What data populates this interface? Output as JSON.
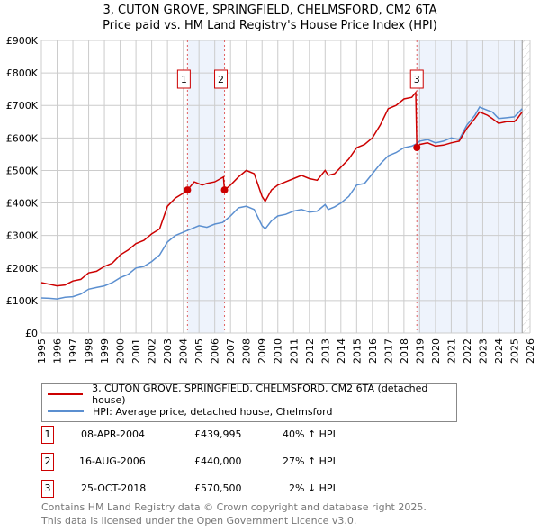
{
  "title": "3, CUTON GROVE, SPRINGFIELD, CHELMSFORD, CM2 6TA",
  "subtitle": "Price paid vs. HM Land Registry's House Price Index (HPI)",
  "chart_data": {
    "type": "line",
    "xlim": [
      1995,
      2026
    ],
    "ylim": [
      0,
      900000
    ],
    "yticks": [
      0,
      100000,
      200000,
      300000,
      400000,
      500000,
      600000,
      700000,
      800000,
      900000
    ],
    "ytick_labels": [
      "£0",
      "£100K",
      "£200K",
      "£300K",
      "£400K",
      "£500K",
      "£600K",
      "£700K",
      "£800K",
      "£900K"
    ],
    "xticks": [
      1995,
      1996,
      1997,
      1998,
      1999,
      2000,
      2001,
      2002,
      2003,
      2004,
      2005,
      2006,
      2007,
      2008,
      2009,
      2010,
      2011,
      2012,
      2013,
      2014,
      2015,
      2016,
      2017,
      2018,
      2019,
      2020,
      2021,
      2022,
      2023,
      2024,
      2025,
      2026
    ],
    "grid": true,
    "colors": {
      "property": "#cc0000",
      "hpi": "#5b8fd0",
      "shade": "#eef3fc"
    },
    "shaded_ranges": [
      [
        2004.27,
        2006.62
      ],
      [
        2018.82,
        2025.5
      ]
    ],
    "forecast_hatch_from": 2025.5,
    "series": [
      {
        "name": "3, CUTON GROVE, SPRINGFIELD, CHELMSFORD, CM2 6TA (detached house)",
        "key": "property",
        "x": [
          1995,
          1995.5,
          1996,
          1996.5,
          1997,
          1997.5,
          1998,
          1998.5,
          1999,
          1999.5,
          2000,
          2000.5,
          2001,
          2001.5,
          2002,
          2002.5,
          2003,
          2003.5,
          2004,
          2004.27,
          2004.7,
          2005.2,
          2005.5,
          2006,
          2006.55,
          2006.62,
          2007,
          2007.5,
          2008,
          2008.5,
          2009,
          2009.2,
          2009.6,
          2010,
          2010.5,
          2011,
          2011.5,
          2012,
          2012.5,
          2013,
          2013.2,
          2013.6,
          2014,
          2014.5,
          2015,
          2015.5,
          2016,
          2016.5,
          2017,
          2017.5,
          2018,
          2018.5,
          2018.75,
          2018.82,
          2019,
          2019.5,
          2020,
          2020.5,
          2021,
          2021.5,
          2022,
          2022.5,
          2022.8,
          2023.3,
          2023.6,
          2024,
          2024.5,
          2025,
          2025.2,
          2025.5
        ],
        "y": [
          155000,
          150000,
          145000,
          148000,
          160000,
          165000,
          185000,
          190000,
          205000,
          215000,
          240000,
          255000,
          275000,
          285000,
          305000,
          320000,
          390000,
          415000,
          430000,
          440000,
          465000,
          455000,
          460000,
          465000,
          480000,
          440000,
          455000,
          480000,
          500000,
          490000,
          420000,
          405000,
          440000,
          455000,
          465000,
          475000,
          485000,
          475000,
          470000,
          500000,
          485000,
          490000,
          510000,
          535000,
          570000,
          580000,
          600000,
          640000,
          690000,
          700000,
          720000,
          725000,
          740000,
          570000,
          580000,
          585000,
          575000,
          578000,
          585000,
          590000,
          630000,
          660000,
          680000,
          670000,
          660000,
          645000,
          650000,
          650000,
          660000,
          680000
        ]
      },
      {
        "name": "HPI: Average price, detached house, Chelmsford",
        "key": "hpi",
        "x": [
          1995,
          1995.5,
          1996,
          1996.5,
          1997,
          1997.5,
          1998,
          1998.5,
          1999,
          1999.5,
          2000,
          2000.5,
          2001,
          2001.5,
          2002,
          2002.5,
          2003,
          2003.5,
          2004,
          2004.5,
          2005,
          2005.5,
          2006,
          2006.5,
          2007,
          2007.5,
          2008,
          2008.5,
          2009,
          2009.2,
          2009.6,
          2010,
          2010.5,
          2011,
          2011.5,
          2012,
          2012.5,
          2013,
          2013.2,
          2013.6,
          2014,
          2014.5,
          2015,
          2015.5,
          2016,
          2016.5,
          2017,
          2017.5,
          2018,
          2018.5,
          2018.8,
          2019,
          2019.5,
          2020,
          2020.5,
          2021,
          2021.5,
          2022,
          2022.5,
          2022.8,
          2023.3,
          2023.6,
          2024,
          2024.5,
          2025,
          2025.2,
          2025.5
        ],
        "y": [
          108000,
          107000,
          105000,
          110000,
          112000,
          120000,
          135000,
          140000,
          145000,
          155000,
          170000,
          180000,
          200000,
          205000,
          220000,
          240000,
          280000,
          300000,
          310000,
          320000,
          330000,
          325000,
          335000,
          340000,
          360000,
          385000,
          390000,
          380000,
          330000,
          320000,
          345000,
          360000,
          365000,
          375000,
          380000,
          372000,
          375000,
          395000,
          380000,
          388000,
          400000,
          420000,
          455000,
          460000,
          490000,
          520000,
          545000,
          555000,
          570000,
          575000,
          582000,
          590000,
          595000,
          585000,
          590000,
          600000,
          595000,
          640000,
          670000,
          695000,
          685000,
          680000,
          660000,
          662000,
          665000,
          675000,
          690000
        ]
      }
    ],
    "sales": [
      {
        "label": "1",
        "x": 2004.27,
        "y": 439995
      },
      {
        "label": "2",
        "x": 2006.62,
        "y": 440000
      },
      {
        "label": "3",
        "x": 2018.82,
        "y": 570500
      }
    ]
  },
  "legend": {
    "property": "3, CUTON GROVE, SPRINGFIELD, CHELMSFORD, CM2 6TA (detached house)",
    "hpi": "HPI: Average price, detached house, Chelmsford"
  },
  "transactions": [
    {
      "num": "1",
      "date": "08-APR-2004",
      "price": "£439,995",
      "hpi": "40% ↑ HPI"
    },
    {
      "num": "2",
      "date": "16-AUG-2006",
      "price": "£440,000",
      "hpi": "27% ↑ HPI"
    },
    {
      "num": "3",
      "date": "25-OCT-2018",
      "price": "£570,500",
      "hpi": "2% ↓ HPI"
    }
  ],
  "footer": {
    "line1": "Contains HM Land Registry data © Crown copyright and database right 2025.",
    "line2": "This data is licensed under the Open Government Licence v3.0."
  }
}
